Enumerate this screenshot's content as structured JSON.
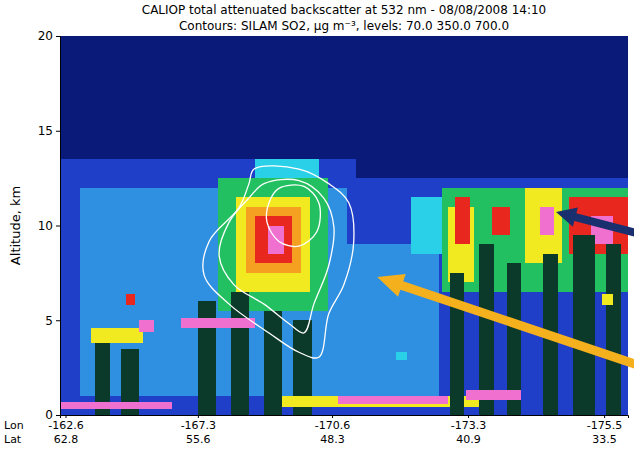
{
  "chart_data": {
    "type": "heatmap",
    "title": "CALIOP total attenuated backscatter at 532 nm - 08/08/2008 14:10",
    "subtitle": "Contours: SILAM SO2, µg m⁻³, levels: 70.0 350.0 700.0",
    "ylabel": "Altitude, km",
    "xtick_rows": [
      "Lon",
      "Lat"
    ],
    "xlim": [
      63.1,
      32.2
    ],
    "xticks": [
      62.8,
      55.6,
      48.3,
      40.9,
      33.5
    ],
    "lon_ticks": [
      -162.6,
      -167.3,
      -170.6,
      -173.3,
      -175.5
    ],
    "ylim": [
      0,
      20
    ],
    "yticks": [
      0,
      5,
      10,
      15,
      20
    ],
    "grid": false,
    "color_bar": {
      "thresholds": [
        0.0001,
        0.0004,
        0.0008,
        0.0015,
        0.002,
        0.003,
        0.004,
        0.006,
        0.008,
        0.01,
        0.02
      ],
      "colors": [
        "#0b3a2a",
        "#0a1a78",
        "#1f3fc8",
        "#2f8fe0",
        "#2ad0e8",
        "#22c060",
        "#a8e040",
        "#f2ea20",
        "#f5a020",
        "#e8281e",
        "#f070d0",
        "#d0d0d0"
      ]
    },
    "cells": [
      {
        "lat": [
          63.1,
          32.2
        ],
        "alt": [
          0,
          20
        ],
        "value": 0.0003
      },
      {
        "lat": [
          63.1,
          47.0
        ],
        "alt": [
          0,
          13.5
        ],
        "value": 0.0006
      },
      {
        "lat": [
          47.0,
          32.2
        ],
        "alt": [
          0,
          12.5
        ],
        "value": 0.0006
      },
      {
        "lat": [
          62.0,
          47.5
        ],
        "alt": [
          1.0,
          12.0
        ],
        "value": 0.001
      },
      {
        "lat": [
          47.5,
          42.5
        ],
        "alt": [
          1.0,
          9.0
        ],
        "value": 0.001
      },
      {
        "lat": [
          54.5,
          48.5
        ],
        "alt": [
          5.5,
          12.5
        ],
        "value": 0.0025
      },
      {
        "lat": [
          52.5,
          49.0
        ],
        "alt": [
          12.5,
          13.5
        ],
        "value": 0.0018
      },
      {
        "lat": [
          53.5,
          49.5
        ],
        "alt": [
          6.5,
          11.5
        ],
        "value": 0.005
      },
      {
        "lat": [
          53.0,
          50.0
        ],
        "alt": [
          7.5,
          11.0
        ],
        "value": 0.007
      },
      {
        "lat": [
          52.5,
          50.5
        ],
        "alt": [
          8.0,
          10.5
        ],
        "value": 0.009
      },
      {
        "lat": [
          51.8,
          50.9
        ],
        "alt": [
          8.5,
          10.0
        ],
        "value": 0.015
      },
      {
        "lat": [
          55.6,
          54.6
        ],
        "alt": [
          0,
          6.0
        ],
        "value": 5e-05
      },
      {
        "lat": [
          53.8,
          52.8
        ],
        "alt": [
          0,
          6.5
        ],
        "value": 5e-05
      },
      {
        "lat": [
          52.0,
          51.0
        ],
        "alt": [
          0,
          5.5
        ],
        "value": 5e-05
      },
      {
        "lat": [
          50.4,
          49.4
        ],
        "alt": [
          0,
          5.0
        ],
        "value": 5e-05
      },
      {
        "lat": [
          56.5,
          52.5
        ],
        "alt": [
          4.6,
          5.1
        ],
        "value": 0.015
      },
      {
        "lat": [
          61.2,
          60.4
        ],
        "alt": [
          0,
          4.0
        ],
        "value": 5e-05
      },
      {
        "lat": [
          59.8,
          58.8
        ],
        "alt": [
          0,
          3.5
        ],
        "value": 5e-05
      },
      {
        "lat": [
          61.4,
          58.6
        ],
        "alt": [
          3.8,
          4.6
        ],
        "value": 0.005
      },
      {
        "lat": [
          59.5,
          59.0
        ],
        "alt": [
          5.8,
          6.4
        ],
        "value": 0.009
      },
      {
        "lat": [
          58.8,
          58.0
        ],
        "alt": [
          4.4,
          5.0
        ],
        "value": 0.015
      },
      {
        "lat": [
          63.1,
          57.0
        ],
        "alt": [
          0.3,
          0.7
        ],
        "value": 0.015
      },
      {
        "lat": [
          51.0,
          40.0
        ],
        "alt": [
          0.4,
          1.0
        ],
        "value": 0.005
      },
      {
        "lat": [
          48.0,
          42.0
        ],
        "alt": [
          0.6,
          1.0
        ],
        "value": 0.015
      },
      {
        "lat": [
          44.8,
          44.2
        ],
        "alt": [
          2.9,
          3.3
        ],
        "value": 0.0018
      },
      {
        "lat": [
          42.3,
          32.2
        ],
        "alt": [
          6.5,
          12.0
        ],
        "value": 0.0025
      },
      {
        "lat": [
          42.0,
          40.6
        ],
        "alt": [
          7.0,
          11.0
        ],
        "value": 0.005
      },
      {
        "lat": [
          41.6,
          40.8
        ],
        "alt": [
          9.0,
          11.5
        ],
        "value": 0.009
      },
      {
        "lat": [
          39.6,
          38.6
        ],
        "alt": [
          9.5,
          11.0
        ],
        "value": 0.009
      },
      {
        "lat": [
          37.8,
          35.8
        ],
        "alt": [
          8.0,
          12.0
        ],
        "value": 0.005
      },
      {
        "lat": [
          37.0,
          36.2
        ],
        "alt": [
          9.5,
          11.0
        ],
        "value": 0.015
      },
      {
        "lat": [
          35.4,
          32.2
        ],
        "alt": [
          8.5,
          11.5
        ],
        "value": 0.009
      },
      {
        "lat": [
          34.2,
          33.0
        ],
        "alt": [
          9.0,
          10.5
        ],
        "value": 0.015
      },
      {
        "lat": [
          41.9,
          41.1
        ],
        "alt": [
          0,
          7.5
        ],
        "value": 5e-05
      },
      {
        "lat": [
          40.3,
          39.5
        ],
        "alt": [
          0,
          9.0
        ],
        "value": 5e-05
      },
      {
        "lat": [
          38.8,
          38.0
        ],
        "alt": [
          0,
          8.0
        ],
        "value": 5e-05
      },
      {
        "lat": [
          36.8,
          36.0
        ],
        "alt": [
          0,
          8.5
        ],
        "value": 5e-05
      },
      {
        "lat": [
          35.2,
          34.0
        ],
        "alt": [
          0,
          9.5
        ],
        "value": 5e-05
      },
      {
        "lat": [
          33.4,
          32.6
        ],
        "alt": [
          0,
          9.0
        ],
        "value": 5e-05
      },
      {
        "lat": [
          41.0,
          38.0
        ],
        "alt": [
          0.8,
          1.3
        ],
        "value": 0.015
      },
      {
        "lat": [
          33.6,
          33.0
        ],
        "alt": [
          5.8,
          6.4
        ],
        "value": 0.005
      },
      {
        "lat": [
          44.0,
          42.3
        ],
        "alt": [
          8.5,
          11.5
        ],
        "value": 0.0018
      }
    ],
    "contours": [
      {
        "color": "#ffffff",
        "lat": [
          52.54,
          50.1,
          48.48,
          47.39,
          47.12,
          47.66,
          48.48,
          49.02,
          50.1,
          51.73,
          53.9,
          55.26,
          54.99,
          53.36,
          52.82
        ],
        "alt": [
          12.98,
          12.98,
          12.21,
          11.2,
          9.16,
          6.87,
          5.34,
          3.05,
          3.31,
          4.33,
          5.85,
          7.38,
          9.16,
          10.94,
          12.21
        ]
      },
      {
        "color": "#ffffff",
        "lat": [
          52.0,
          50.1,
          48.75,
          48.2,
          48.48,
          49.29,
          49.83,
          50.65,
          52.0,
          53.63,
          54.44,
          53.9,
          52.82
        ],
        "alt": [
          12.21,
          12.37,
          11.45,
          9.92,
          7.89,
          5.85,
          4.33,
          4.83,
          5.85,
          6.87,
          8.4,
          10.18,
          11.45
        ]
      },
      {
        "color": "#ffffff",
        "lat": [
          51.19,
          49.83,
          49.02,
          49.13,
          50.1,
          51.19,
          51.84,
          51.73
        ],
        "alt": [
          11.96,
          12.06,
          11.2,
          9.67,
          8.91,
          9.16,
          10.18,
          11.2
        ]
      }
    ]
  }
}
